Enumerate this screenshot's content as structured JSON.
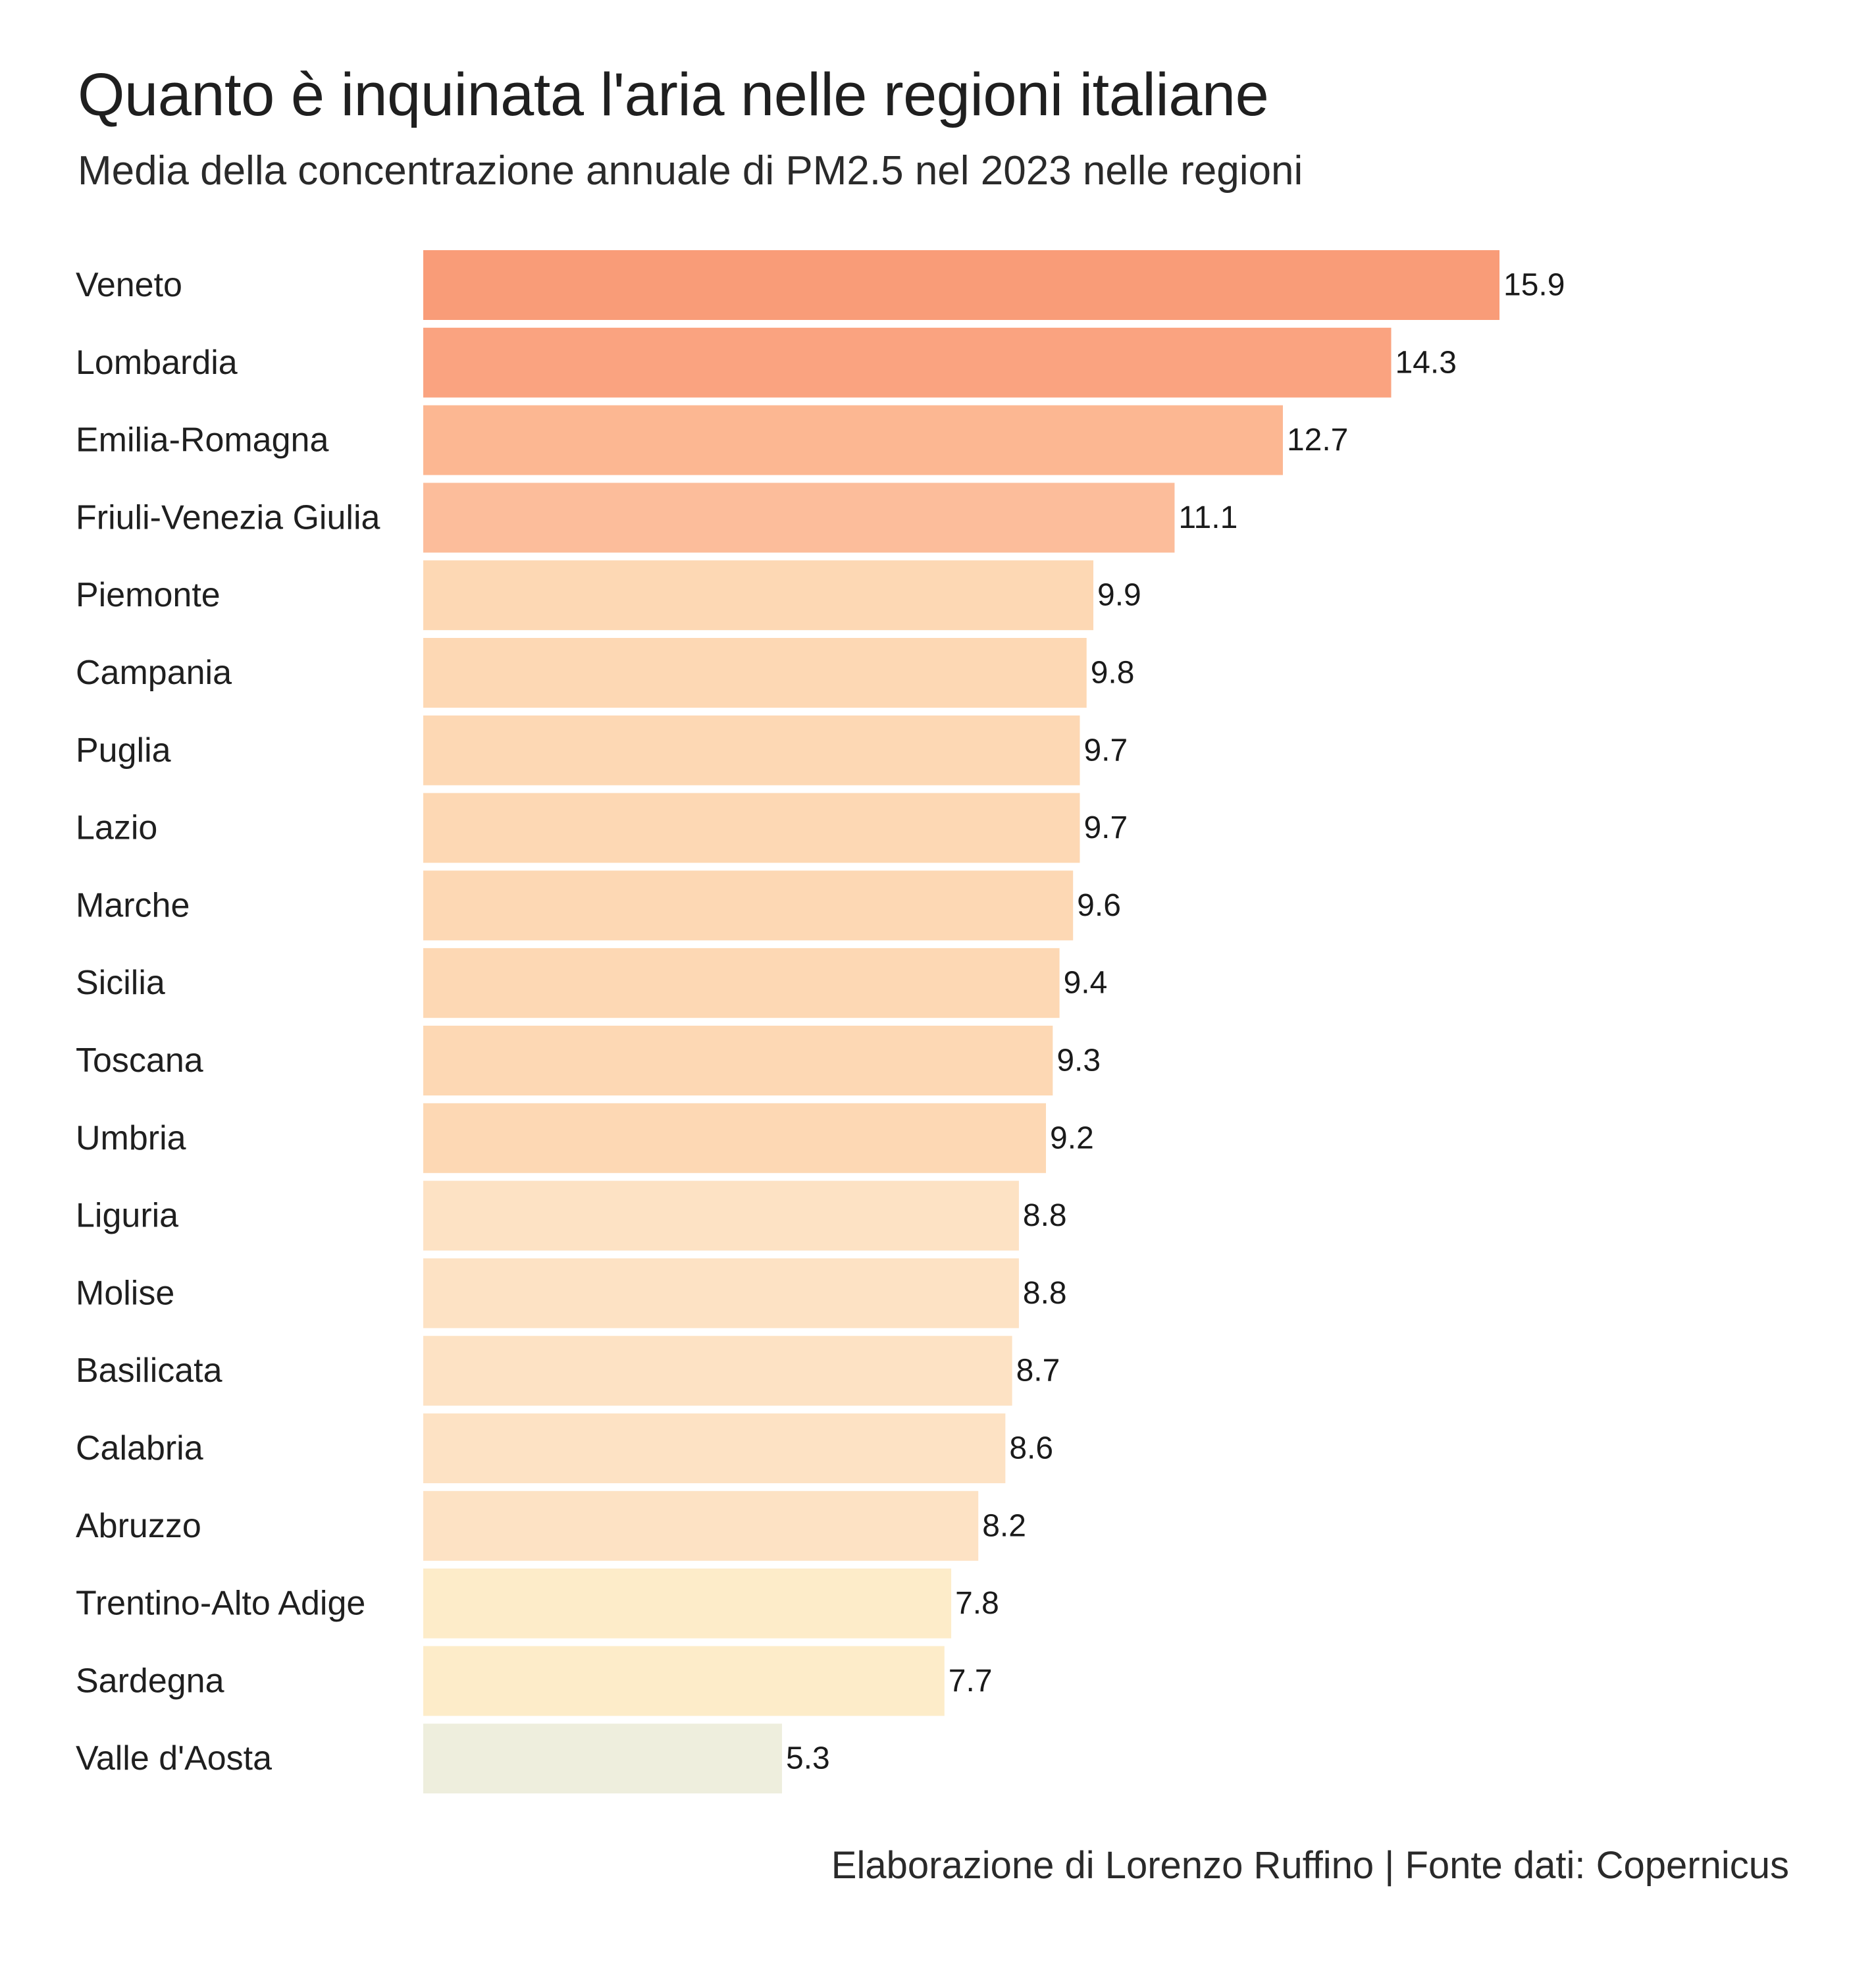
{
  "title": "Quanto è inquinata l'aria nelle regioni italiane",
  "subtitle": "Media della concentrazione annuale di PM2.5 nel 2023 nelle regioni",
  "caption": "Elaborazione di Lorenzo Ruffino | Fonte dati: Copernicus",
  "chart_data": {
    "type": "bar",
    "orientation": "horizontal",
    "title": "Quanto è inquinata l'aria nelle regioni italiane",
    "subtitle": "Media della concentrazione annuale di PM2.5 nel 2023 nelle regioni",
    "categories": [
      "Veneto",
      "Lombardia",
      "Emilia-Romagna",
      "Friuli-Venezia Giulia",
      "Piemonte",
      "Campania",
      "Puglia",
      "Lazio",
      "Marche",
      "Sicilia",
      "Toscana",
      "Umbria",
      "Liguria",
      "Molise",
      "Basilicata",
      "Calabria",
      "Abruzzo",
      "Trentino-Alto Adige",
      "Sardegna",
      "Valle d'Aosta"
    ],
    "values": [
      15.9,
      14.3,
      12.7,
      11.1,
      9.9,
      9.8,
      9.7,
      9.7,
      9.6,
      9.4,
      9.3,
      9.2,
      8.8,
      8.8,
      8.7,
      8.6,
      8.2,
      7.8,
      7.7,
      5.3
    ],
    "value_labels": [
      "15.9",
      "14.3",
      "12.7",
      "11.1",
      "9.9",
      "9.8",
      "9.7",
      "9.7",
      "9.6",
      "9.4",
      "9.3",
      "9.2",
      "8.8",
      "8.8",
      "8.7",
      "8.6",
      "8.2",
      "7.8",
      "7.7",
      "5.3"
    ],
    "xlim": [
      0,
      15.9
    ],
    "grid": false,
    "legend": "none",
    "colors": {
      "high": "#f99c78",
      "mid_high": "#fcbd9b",
      "mid": "#fdd8b4",
      "mid_low": "#fde2c4",
      "low": "#fdecc9",
      "lowest": "#eeeedd"
    }
  }
}
